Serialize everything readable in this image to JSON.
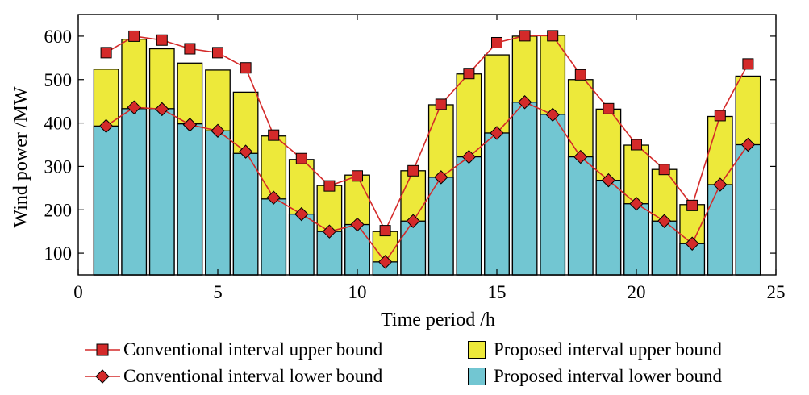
{
  "chart_data": {
    "type": "bar",
    "xlabel": "Time period /h",
    "ylabel": "Wind power /MW",
    "xlim": [
      0,
      25
    ],
    "ylim": [
      50,
      650
    ],
    "x_ticks": [
      0,
      5,
      10,
      15,
      20,
      25
    ],
    "y_ticks": [
      100,
      200,
      300,
      400,
      500,
      600
    ],
    "grid": false,
    "legend_position": "bottom",
    "x": [
      1,
      2,
      3,
      4,
      5,
      6,
      7,
      8,
      9,
      10,
      11,
      12,
      13,
      14,
      15,
      16,
      17,
      18,
      19,
      20,
      21,
      22,
      23,
      24
    ],
    "series": [
      {
        "name": "Conventional interval upper bound",
        "kind": "line",
        "marker": "square",
        "color": "#d42a2a",
        "values": [
          562,
          600,
          591,
          571,
          562,
          527,
          372,
          318,
          255,
          278,
          152,
          290,
          443,
          514,
          585,
          601,
          601,
          511,
          433,
          350,
          293,
          210,
          417,
          536
        ]
      },
      {
        "name": "Conventional interval lower bound",
        "kind": "line",
        "marker": "diamond",
        "color": "#d42a2a",
        "values": [
          393,
          436,
          432,
          396,
          382,
          334,
          228,
          190,
          150,
          166,
          80,
          174,
          275,
          322,
          377,
          448,
          419,
          322,
          268,
          214,
          174,
          122,
          258,
          350
        ]
      },
      {
        "name": "Proposed interval upper bound",
        "kind": "bar",
        "color": "#ede93a",
        "values": [
          524,
          593,
          571,
          538,
          522,
          471,
          370,
          316,
          256,
          280,
          150,
          290,
          442,
          513,
          557,
          600,
          602,
          500,
          432,
          349,
          293,
          212,
          415,
          508
        ]
      },
      {
        "name": "Proposed interval lower bound",
        "kind": "bar",
        "color": "#72c6d2",
        "values": [
          393,
          433,
          433,
          398,
          382,
          330,
          225,
          190,
          150,
          166,
          80,
          174,
          275,
          322,
          377,
          448,
          420,
          322,
          268,
          214,
          174,
          122,
          258,
          350
        ]
      }
    ]
  }
}
